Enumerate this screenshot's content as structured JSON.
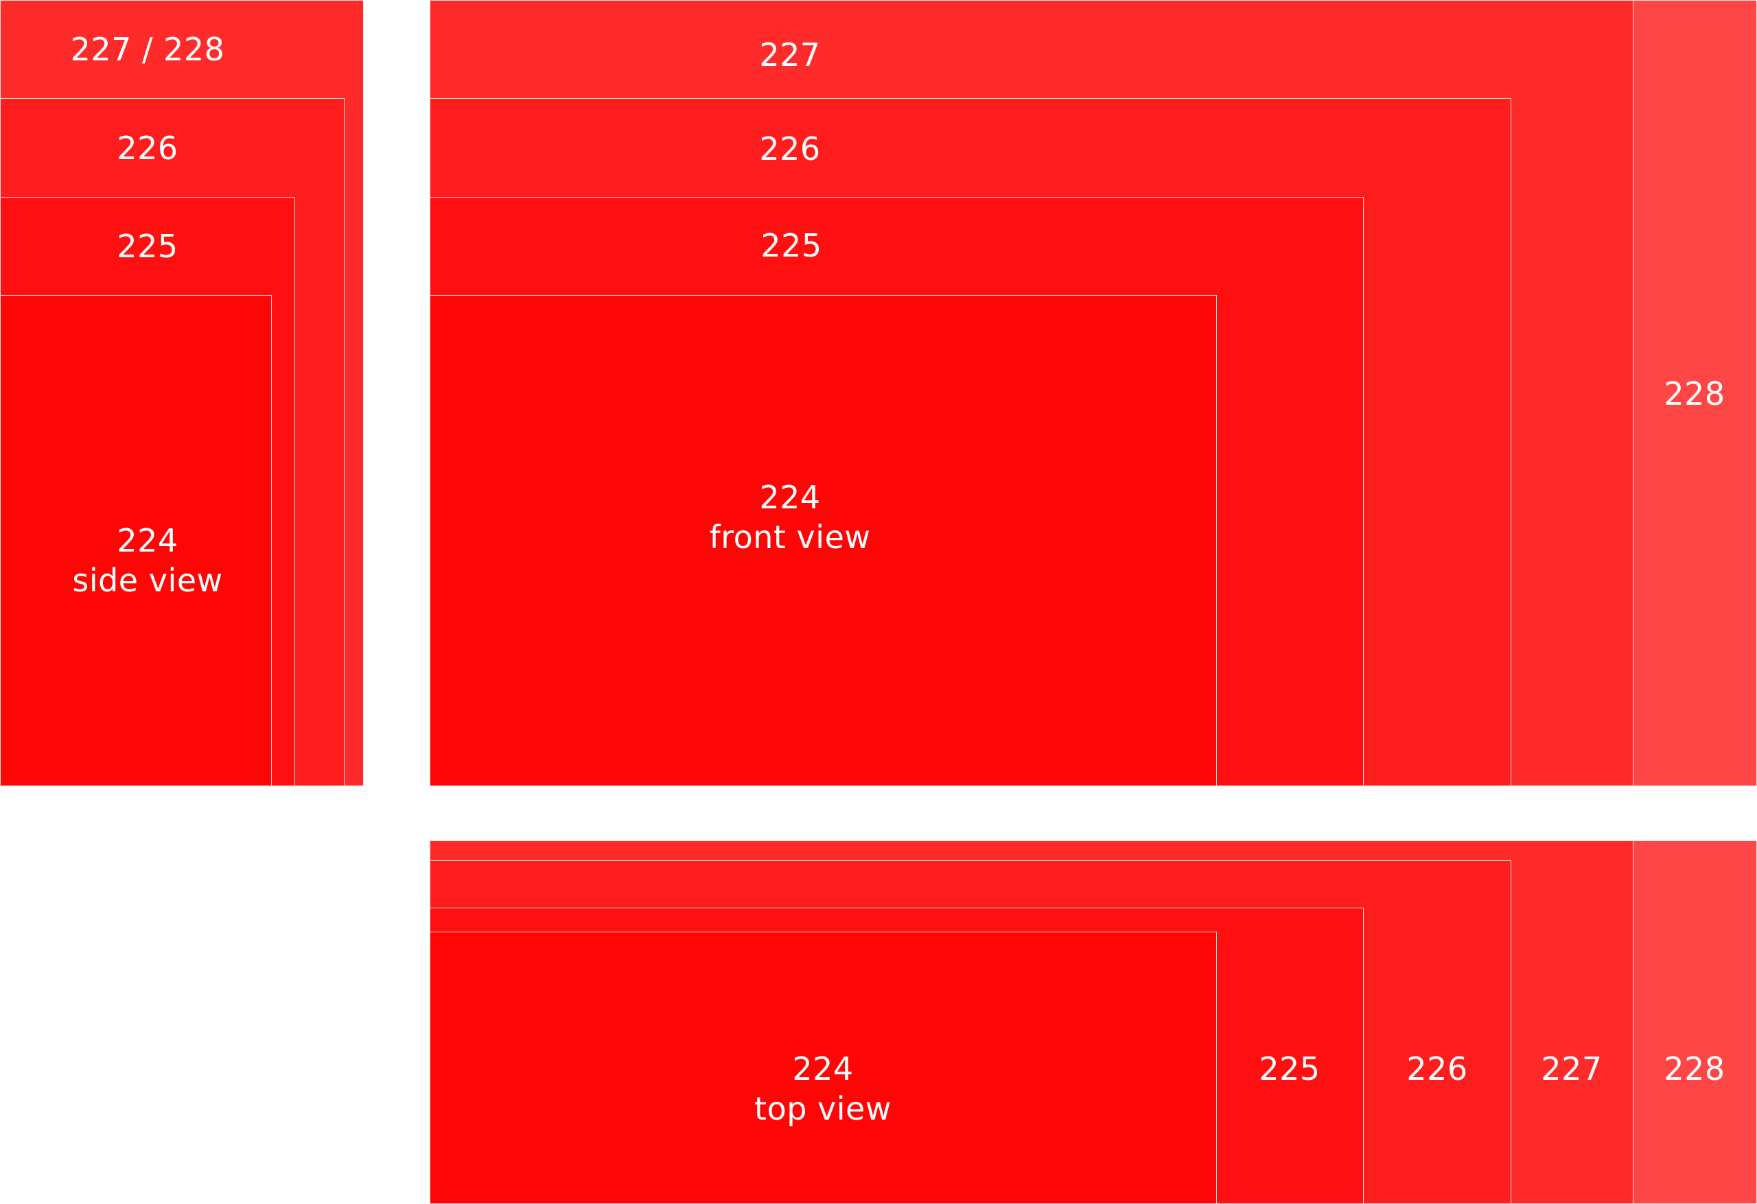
{
  "colors": {
    "r228": "#ff4646",
    "r227": "#ff2b2b",
    "r226": "#ff1c1c",
    "r225": "#ff0f0f",
    "r224": "#ff0606",
    "background": "#ffffff",
    "text": "#ffffff"
  },
  "side_view": {
    "label_227_228": "227 / 228",
    "label_226": "226",
    "label_225": "225",
    "label_224": "224",
    "caption_224": "side view"
  },
  "front_view": {
    "label_228": "228",
    "label_227": "227",
    "label_226": "226",
    "label_225": "225",
    "label_224": "224",
    "caption_224": "front view"
  },
  "top_view": {
    "label_228": "228",
    "label_227": "227",
    "label_226": "226",
    "label_225": "225",
    "label_224": "224",
    "caption_224": "top view"
  }
}
